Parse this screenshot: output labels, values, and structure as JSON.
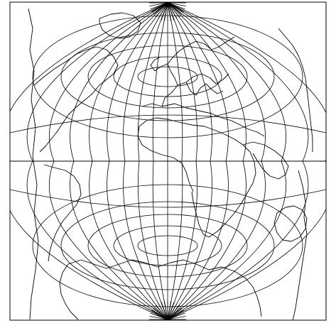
{
  "map": {
    "type": "pseudo-conic world graticule with coastlines",
    "background": "#ffffff",
    "line_color": "#000000",
    "title": "",
    "labels": [],
    "graticule_interval_deg": 15
  }
}
